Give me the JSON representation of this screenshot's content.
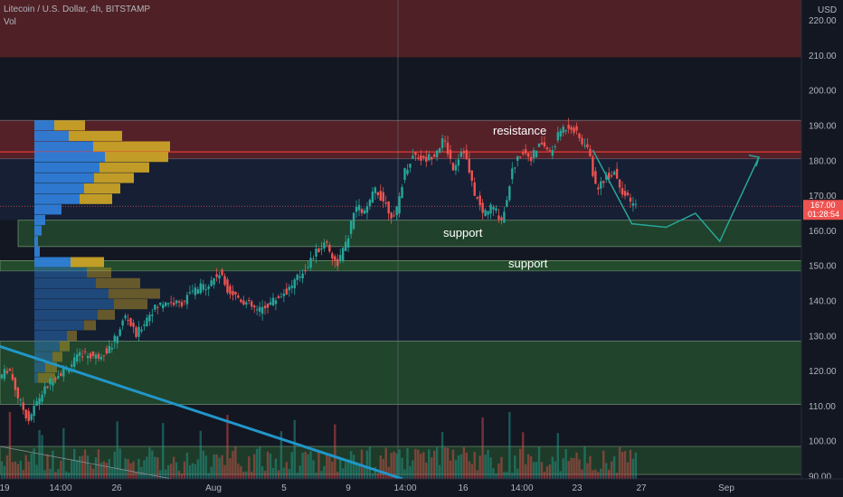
{
  "header": {
    "symbol_line": "Litecoin / U.S. Dollar, 4h, BITSTAMP",
    "indicator": "Vol"
  },
  "chart_data": {
    "type": "candlestick",
    "currency_label": "USD",
    "y_ticks": [
      90,
      100,
      110,
      120,
      130,
      140,
      150,
      160,
      170,
      180,
      190,
      200,
      210,
      220
    ],
    "y_tick_labels": [
      "90.00",
      "100.00",
      "110.00",
      "120.00",
      "130.00",
      "140.00",
      "150.00",
      "160.00",
      "170.00",
      "180.00",
      "190.00",
      "200.00",
      "210.00",
      "220.00"
    ],
    "x_tick_labels": [
      "19",
      "14:00",
      "26",
      "Aug",
      "5",
      "9",
      "14:00",
      "16",
      "14:00",
      "23",
      "27",
      "Sep"
    ],
    "current_price": "167.00",
    "countdown": "01:28:54",
    "annotations": [
      "resistance",
      "support",
      "support"
    ],
    "price_path": [
      {
        "t": 0,
        "p": 118
      },
      {
        "t": 2,
        "p": 121
      },
      {
        "t": 4,
        "p": 112
      },
      {
        "t": 6,
        "p": 106
      },
      {
        "t": 8,
        "p": 112
      },
      {
        "t": 11,
        "p": 118
      },
      {
        "t": 14,
        "p": 121
      },
      {
        "t": 17,
        "p": 125
      },
      {
        "t": 20,
        "p": 124
      },
      {
        "t": 23,
        "p": 127
      },
      {
        "t": 26,
        "p": 136
      },
      {
        "t": 28,
        "p": 130
      },
      {
        "t": 31,
        "p": 137
      },
      {
        "t": 34,
        "p": 140
      },
      {
        "t": 37,
        "p": 139
      },
      {
        "t": 40,
        "p": 143
      },
      {
        "t": 43,
        "p": 145
      },
      {
        "t": 45,
        "p": 148
      },
      {
        "t": 47,
        "p": 143
      },
      {
        "t": 50,
        "p": 140
      },
      {
        "t": 53,
        "p": 137
      },
      {
        "t": 56,
        "p": 140
      },
      {
        "t": 59,
        "p": 143
      },
      {
        "t": 62,
        "p": 148
      },
      {
        "t": 65,
        "p": 154
      },
      {
        "t": 67,
        "p": 157
      },
      {
        "t": 69,
        "p": 150
      },
      {
        "t": 71,
        "p": 156
      },
      {
        "t": 73,
        "p": 167
      },
      {
        "t": 75,
        "p": 165
      },
      {
        "t": 77,
        "p": 172
      },
      {
        "t": 79,
        "p": 168
      },
      {
        "t": 81,
        "p": 163
      },
      {
        "t": 83,
        "p": 177
      },
      {
        "t": 85,
        "p": 182
      },
      {
        "t": 87,
        "p": 180
      },
      {
        "t": 89,
        "p": 182
      },
      {
        "t": 91,
        "p": 186
      },
      {
        "t": 93,
        "p": 178
      },
      {
        "t": 95,
        "p": 184
      },
      {
        "t": 97,
        "p": 172
      },
      {
        "t": 99,
        "p": 165
      },
      {
        "t": 101,
        "p": 167
      },
      {
        "t": 103,
        "p": 163
      },
      {
        "t": 105,
        "p": 177
      },
      {
        "t": 107,
        "p": 183
      },
      {
        "t": 109,
        "p": 181
      },
      {
        "t": 111,
        "p": 185
      },
      {
        "t": 113,
        "p": 182
      },
      {
        "t": 115,
        "p": 189
      },
      {
        "t": 117,
        "p": 190
      },
      {
        "t": 119,
        "p": 186
      },
      {
        "t": 121,
        "p": 182
      },
      {
        "t": 122,
        "p": 172
      },
      {
        "t": 124,
        "p": 175
      },
      {
        "t": 126,
        "p": 177
      },
      {
        "t": 128,
        "p": 170
      },
      {
        "t": 130,
        "p": 167
      }
    ],
    "projection_path": [
      {
        "t": 121,
        "p": 183
      },
      {
        "t": 129,
        "p": 162
      },
      {
        "t": 136,
        "p": 161
      },
      {
        "t": 142,
        "p": 165
      },
      {
        "t": 147,
        "p": 157
      },
      {
        "t": 155,
        "p": 181
      }
    ],
    "resistance_zone": [
      180.5,
      191.5
    ],
    "resistance_line": 182.5,
    "support_zone_1": [
      155.5,
      163
    ],
    "support_zone_2": [
      148.5,
      151.5
    ],
    "green_zone": [
      110.5,
      128.5
    ],
    "top_red_zone": [
      209.5,
      232
    ],
    "colors": {
      "background": "#131722",
      "up": "#26a69a",
      "down": "#ef5350",
      "projection": "#26a69a",
      "trendline": "#2196c9",
      "resistance": "#a32e34",
      "support": "#388e3c",
      "vp_blue": "#2f7ed8",
      "vp_gold": "#c9a227"
    }
  }
}
